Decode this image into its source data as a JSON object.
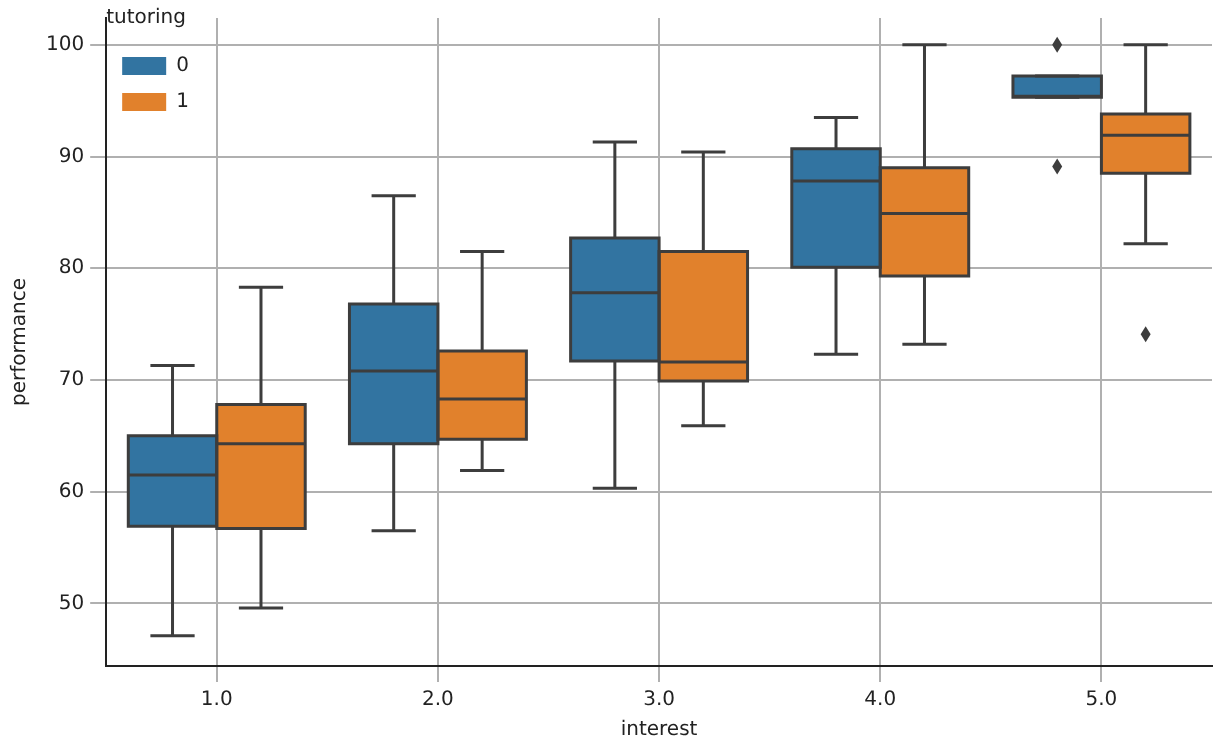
{
  "chart_data": {
    "type": "box",
    "xlabel": "interest",
    "ylabel": "performance",
    "legend_title": "tutoring",
    "categories": [
      "1.0",
      "2.0",
      "3.0",
      "4.0",
      "5.0"
    ],
    "ylim": [
      44.4,
      102.4
    ],
    "yticks": [
      50,
      60,
      70,
      80,
      90,
      100
    ],
    "grid": true,
    "legend": "top left",
    "series": [
      {
        "name": "0",
        "color": "#3274a1",
        "boxes": [
          {
            "low": 47.1,
            "q1": 56.9,
            "median": 61.5,
            "q3": 65.0,
            "high": 71.3
          },
          {
            "low": 56.5,
            "q1": 64.3,
            "median": 70.8,
            "q3": 76.8,
            "high": 86.5
          },
          {
            "low": 60.3,
            "q1": 71.7,
            "median": 77.8,
            "q3": 82.7,
            "high": 91.3
          },
          {
            "low": 72.3,
            "q1": 80.1,
            "median": 87.8,
            "q3": 90.7,
            "high": 93.5
          },
          {
            "low": 95.3,
            "q1": 95.3,
            "median": 95.4,
            "q3": 97.2,
            "high": 97.2,
            "outliers": [
              100,
              89.1
            ]
          }
        ]
      },
      {
        "name": "1",
        "color": "#e1812c",
        "boxes": [
          {
            "low": 49.6,
            "q1": 56.7,
            "median": 64.3,
            "q3": 67.8,
            "high": 78.3
          },
          {
            "low": 61.9,
            "q1": 64.7,
            "median": 68.3,
            "q3": 72.6,
            "high": 81.5
          },
          {
            "low": 65.9,
            "q1": 69.9,
            "median": 71.6,
            "q3": 81.5,
            "high": 90.4
          },
          {
            "low": 73.2,
            "q1": 79.3,
            "median": 84.9,
            "q3": 89.0,
            "high": 100
          },
          {
            "low": 82.2,
            "q1": 88.5,
            "median": 91.9,
            "q3": 93.8,
            "high": 100,
            "outliers": [
              74.1
            ]
          }
        ]
      }
    ]
  }
}
